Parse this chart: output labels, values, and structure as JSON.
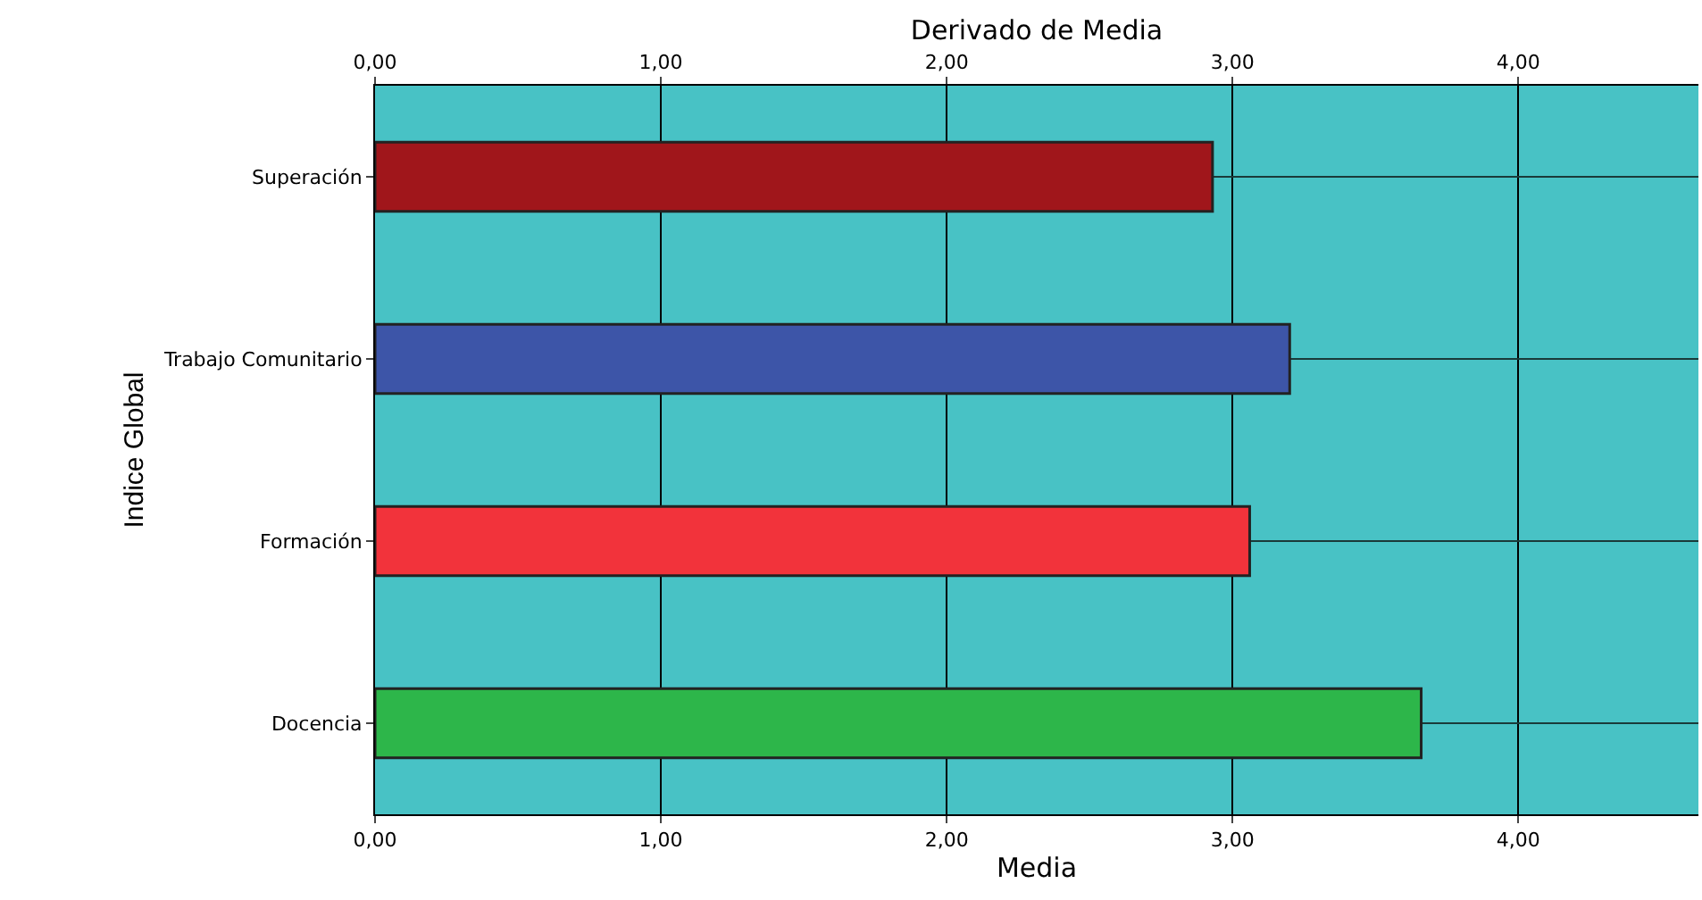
{
  "chart_data": {
    "type": "bar",
    "orientation": "horizontal",
    "x2label": "Derivado de Media",
    "xlabel": "Media",
    "ylabel": "Indice Global",
    "categories": [
      "Superación",
      "Trabajo Comunitario",
      "Formación",
      "Docencia"
    ],
    "values": [
      2.93,
      3.2,
      3.06,
      3.66
    ],
    "colors": [
      "#a0161b",
      "#3d55a8",
      "#f2333b",
      "#2db64a"
    ],
    "xlim": [
      0,
      4.63
    ],
    "xticks": [
      {
        "value": 0,
        "label": "0,00"
      },
      {
        "value": 1,
        "label": "1,00"
      },
      {
        "value": 2,
        "label": "2,00"
      },
      {
        "value": 3,
        "label": "3,00"
      },
      {
        "value": 4,
        "label": "4,00"
      }
    ],
    "x2lim": [
      0,
      4.63
    ],
    "x2ticks": [
      {
        "value": 0,
        "label": "0,00"
      },
      {
        "value": 1,
        "label": "1,00"
      },
      {
        "value": 2,
        "label": "2,00"
      },
      {
        "value": 3,
        "label": "3,00"
      },
      {
        "value": 4,
        "label": "4,00"
      }
    ],
    "grid": true
  }
}
